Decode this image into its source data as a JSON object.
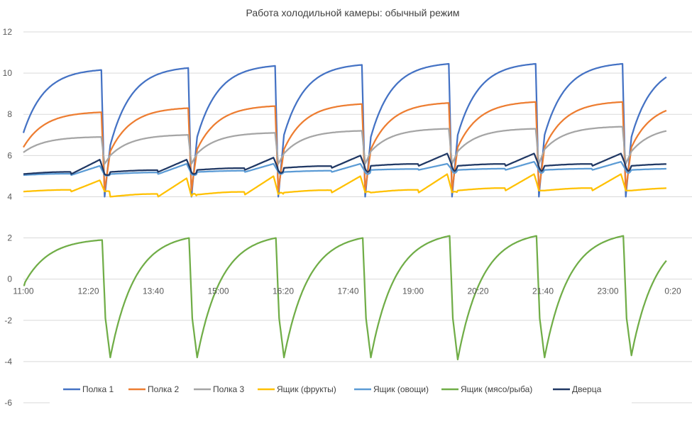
{
  "chart_data": {
    "type": "line",
    "title": "Работа холодильной камеры: обычный режим",
    "xlabel": "",
    "ylabel": "",
    "ylim": [
      -6,
      12
    ],
    "y_ticks": [
      -6,
      -4,
      -2,
      0,
      2,
      4,
      6,
      8,
      10,
      12
    ],
    "x_tick_labels": [
      "11:00",
      "12:20",
      "13:40",
      "15:00",
      "16:20",
      "17:40",
      "19:00",
      "20:20",
      "21:40",
      "23:00",
      "0:20"
    ],
    "x_range_minutes": [
      0,
      792
    ],
    "x_label_spacing_minutes": 80,
    "grid": "horizontal",
    "legend_position": "bottom",
    "cycle_minutes": 107,
    "cycle_starts_minutes": [
      0,
      107,
      214,
      321,
      428,
      535,
      642,
      749
    ],
    "series": [
      {
        "name": "Полка 1",
        "color": "#4472C4",
        "profile": "sawtooth",
        "min": [
          7.1,
          6.5,
          6.9,
          7.0,
          6.9,
          7.0,
          7.0,
          6.9
        ],
        "max": [
          10.15,
          10.25,
          10.35,
          10.4,
          10.45,
          10.45,
          10.45,
          10.4
        ],
        "dip": 4.0
      },
      {
        "name": "Полка 2",
        "color": "#ED7D31",
        "profile": "sawtooth",
        "min": [
          6.4,
          6.2,
          6.3,
          6.3,
          6.3,
          6.4,
          6.4,
          6.4
        ],
        "max": [
          8.1,
          8.3,
          8.4,
          8.5,
          8.55,
          8.6,
          8.6,
          8.55
        ],
        "dip": 4.3
      },
      {
        "name": "Полка 3",
        "color": "#A5A5A5",
        "profile": "sawtooth",
        "min": [
          6.15,
          6.0,
          6.1,
          6.1,
          6.2,
          6.2,
          6.3,
          6.2
        ],
        "max": [
          6.9,
          7.0,
          7.1,
          7.2,
          7.3,
          7.3,
          7.4,
          7.4
        ],
        "dip": 5.6
      },
      {
        "name": "Ящик (фрукты)",
        "color": "#FFC000",
        "profile": "wave",
        "min": [
          4.25,
          4.0,
          4.1,
          4.2,
          4.2,
          4.3,
          4.3,
          4.3
        ],
        "max": [
          4.8,
          4.9,
          5.0,
          5.0,
          5.1,
          5.1,
          5.1,
          5.1
        ],
        "dip": 4.3
      },
      {
        "name": "Ящик (овощи)",
        "color": "#5B9BD5",
        "profile": "wave",
        "min": [
          5.05,
          5.1,
          5.2,
          5.2,
          5.3,
          5.3,
          5.3,
          5.3
        ],
        "max": [
          5.5,
          5.6,
          5.6,
          5.6,
          5.6,
          5.7,
          5.7,
          5.7
        ],
        "dip": 5.0
      },
      {
        "name": "Ящик (мясо/рыба)",
        "color": "#70AD47",
        "profile": "meat",
        "min": [
          -0.3,
          -3.8,
          -3.8,
          -3.8,
          -3.8,
          -3.9,
          -3.8,
          -3.7
        ],
        "max": [
          1.9,
          2.0,
          2.0,
          2.0,
          2.1,
          2.1,
          2.1,
          2.1
        ],
        "dip": -1.9
      },
      {
        "name": "Дверца",
        "color": "#203864",
        "profile": "wave",
        "min": [
          5.1,
          5.2,
          5.3,
          5.4,
          5.5,
          5.5,
          5.5,
          5.5
        ],
        "max": [
          5.8,
          5.8,
          5.9,
          6.0,
          6.1,
          6.1,
          6.1,
          6.1
        ],
        "dip": 5.0
      }
    ]
  }
}
